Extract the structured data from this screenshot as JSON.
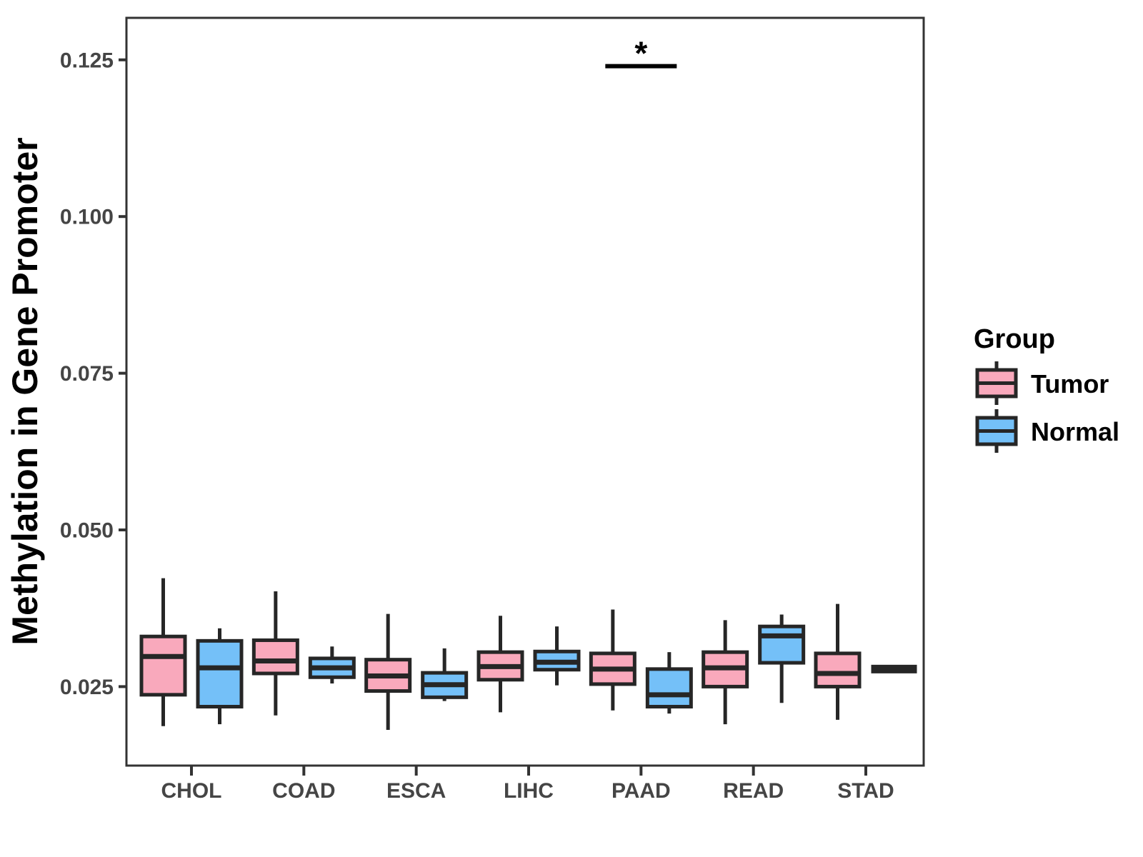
{
  "legend": {
    "title": "Group",
    "items": [
      {
        "label": "Tumor",
        "color": "#F9A9BC"
      },
      {
        "label": "Normal",
        "color": "#74C0F8"
      }
    ]
  },
  "colors": {
    "tumor_fill": "#F9A9BC",
    "normal_fill": "#74C0F8",
    "box_border": "#262626",
    "axis_line": "#333333",
    "tick_text": "#454545"
  },
  "chart_data": {
    "type": "boxplot",
    "title": "",
    "xlabel": "",
    "ylabel": "Methylation in Gene Promoter",
    "categories": [
      "CHOL",
      "COAD",
      "ESCA",
      "LIHC",
      "PAAD",
      "READ",
      "STAD"
    ],
    "y_ticks": [
      0.025,
      0.05,
      0.075,
      0.1,
      0.125
    ],
    "y_tick_labels": [
      "0.025",
      "0.050",
      "0.075",
      "0.100",
      "0.125"
    ],
    "ylim": [
      0.0124,
      0.1317
    ],
    "grid": false,
    "legend_position": "right",
    "series": [
      {
        "name": "Tumor",
        "color": "#F9A9BC",
        "boxes": [
          {
            "category": "CHOL",
            "min": 0.0187,
            "q1": 0.0237,
            "median": 0.0298,
            "q3": 0.033,
            "max": 0.0423
          },
          {
            "category": "COAD",
            "min": 0.0204,
            "q1": 0.0271,
            "median": 0.0291,
            "q3": 0.0324,
            "max": 0.0402
          },
          {
            "category": "ESCA",
            "min": 0.0181,
            "q1": 0.0243,
            "median": 0.0267,
            "q3": 0.0293,
            "max": 0.0366
          },
          {
            "category": "LIHC",
            "min": 0.0209,
            "q1": 0.0261,
            "median": 0.0282,
            "q3": 0.0305,
            "max": 0.0363
          },
          {
            "category": "PAAD",
            "min": 0.0212,
            "q1": 0.0254,
            "median": 0.0278,
            "q3": 0.0303,
            "max": 0.0373
          },
          {
            "category": "READ",
            "min": 0.019,
            "q1": 0.025,
            "median": 0.028,
            "q3": 0.0305,
            "max": 0.0356
          },
          {
            "category": "STAD",
            "min": 0.0197,
            "q1": 0.025,
            "median": 0.0271,
            "q3": 0.0303,
            "max": 0.0382
          }
        ]
      },
      {
        "name": "Normal",
        "color": "#74C0F8",
        "boxes": [
          {
            "category": "CHOL",
            "min": 0.019,
            "q1": 0.0218,
            "median": 0.028,
            "q3": 0.0323,
            "max": 0.0343
          },
          {
            "category": "COAD",
            "min": 0.0255,
            "q1": 0.0265,
            "median": 0.028,
            "q3": 0.0295,
            "max": 0.0314
          },
          {
            "category": "ESCA",
            "min": 0.0227,
            "q1": 0.0233,
            "median": 0.0253,
            "q3": 0.0272,
            "max": 0.0311
          },
          {
            "category": "LIHC",
            "min": 0.0252,
            "q1": 0.0277,
            "median": 0.0289,
            "q3": 0.0306,
            "max": 0.0346
          },
          {
            "category": "PAAD",
            "min": 0.0207,
            "q1": 0.0218,
            "median": 0.0237,
            "q3": 0.0278,
            "max": 0.0305
          },
          {
            "category": "READ",
            "min": 0.0224,
            "q1": 0.0288,
            "median": 0.0331,
            "q3": 0.0346,
            "max": 0.0365
          },
          {
            "category": "STAD",
            "min": 0.0276,
            "q1": 0.0277,
            "median": 0.0278,
            "q3": 0.0279,
            "max": 0.028
          }
        ]
      }
    ],
    "significance": {
      "category": "PAAD",
      "label": "*",
      "bar_value": 0.124
    }
  }
}
